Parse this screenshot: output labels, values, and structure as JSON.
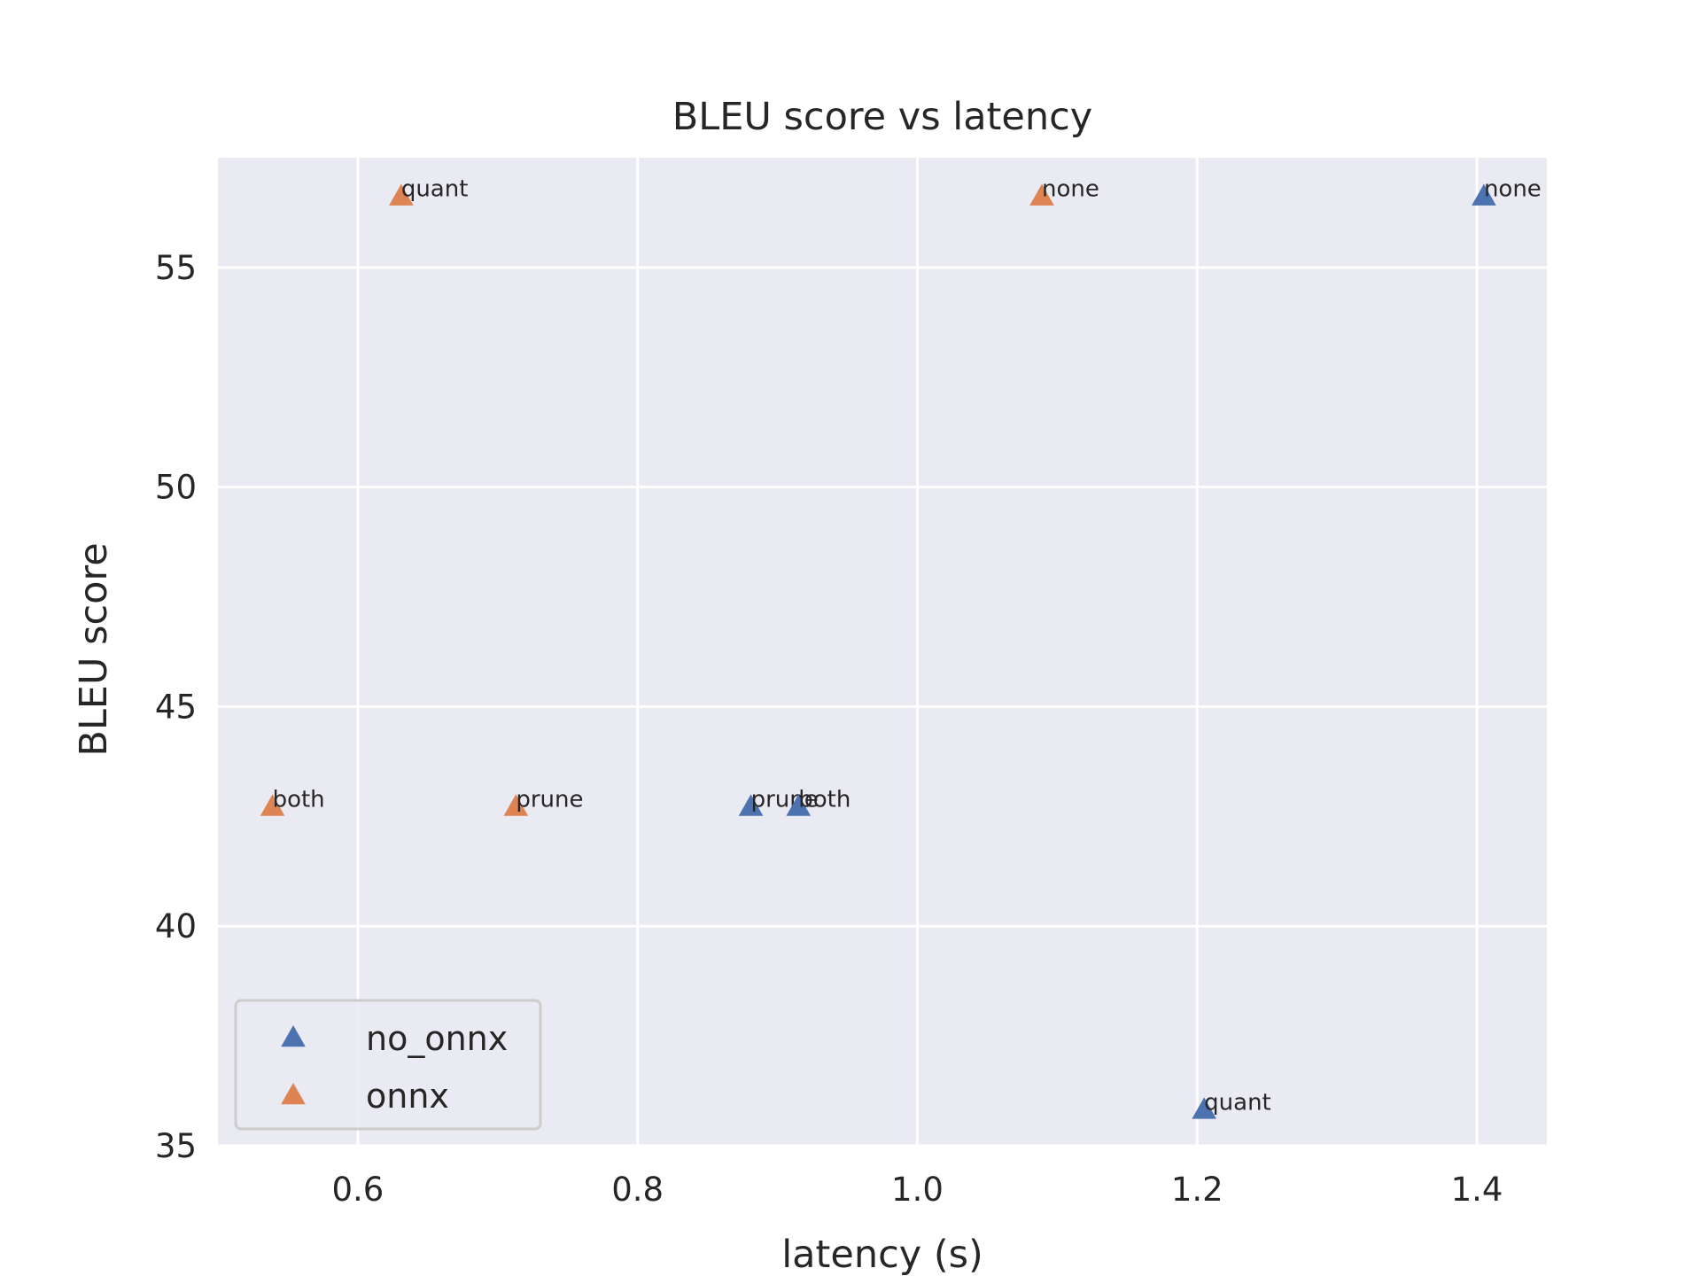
{
  "chart_data": {
    "type": "scatter",
    "title": "BLEU score vs latency",
    "xlabel": "latency (s)",
    "ylabel": "BLEU score",
    "xlim": [
      0.5,
      1.45
    ],
    "ylim": [
      35,
      57.5
    ],
    "xticks": [
      0.6,
      0.8,
      1.0,
      1.2,
      1.4
    ],
    "xtick_labels": [
      "0.6",
      "0.8",
      "1.0",
      "1.2",
      "1.4"
    ],
    "yticks": [
      35,
      40,
      45,
      50,
      55
    ],
    "ytick_labels": [
      "35",
      "40",
      "45",
      "50",
      "55"
    ],
    "grid": true,
    "legend_position": "lower-left",
    "marker": "triangle-up",
    "series": [
      {
        "name": "no_onnx",
        "color": "#4c72b0",
        "points": [
          {
            "x": 1.405,
            "y": 56.6,
            "label": "none"
          },
          {
            "x": 1.205,
            "y": 35.8,
            "label": "quant"
          },
          {
            "x": 0.881,
            "y": 42.7,
            "label": "prune"
          },
          {
            "x": 0.915,
            "y": 42.7,
            "label": "both"
          }
        ]
      },
      {
        "name": "onnx",
        "color": "#dd8452",
        "points": [
          {
            "x": 1.089,
            "y": 56.6,
            "label": "none"
          },
          {
            "x": 0.631,
            "y": 56.6,
            "label": "quant"
          },
          {
            "x": 0.713,
            "y": 42.7,
            "label": "prune"
          },
          {
            "x": 0.539,
            "y": 42.7,
            "label": "both"
          }
        ]
      }
    ]
  }
}
